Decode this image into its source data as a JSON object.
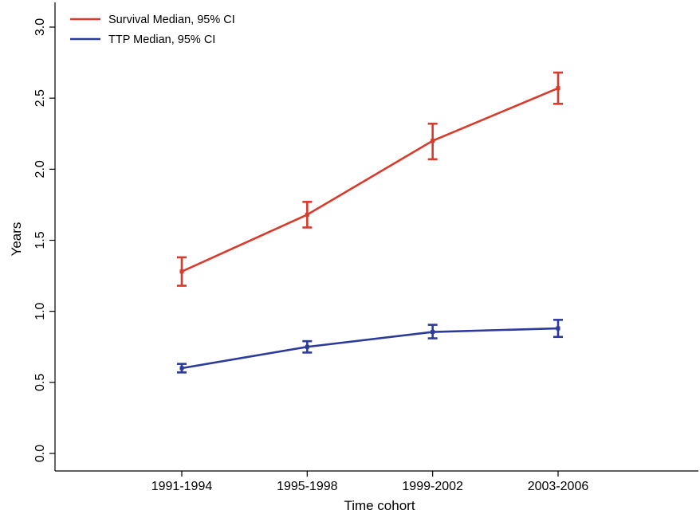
{
  "chart_data": {
    "type": "line",
    "title": "",
    "xlabel": "Time cohort",
    "ylabel": "Years",
    "categories": [
      "1991-1994",
      "1995-1998",
      "1999-2002",
      "2003-2006"
    ],
    "ylim": [
      0.0,
      3.0
    ],
    "yticks": [
      "0.0",
      "0.5",
      "1.0",
      "1.5",
      "2.0",
      "2.5",
      "3.0"
    ],
    "grid": false,
    "legend_position": "top-left",
    "series": [
      {
        "name": "Survival Median, 95% CI",
        "color": "#d93a2b",
        "values": [
          1.28,
          1.68,
          2.2,
          2.57
        ],
        "ci_low": [
          1.18,
          1.59,
          2.07,
          2.46
        ],
        "ci_high": [
          1.38,
          1.77,
          2.32,
          2.68
        ]
      },
      {
        "name": "TTP Median, 95% CI",
        "color": "#2b3a9b",
        "values": [
          0.6,
          0.75,
          0.855,
          0.88
        ],
        "ci_low": [
          0.57,
          0.71,
          0.81,
          0.82
        ],
        "ci_high": [
          0.63,
          0.79,
          0.905,
          0.94
        ]
      }
    ]
  }
}
